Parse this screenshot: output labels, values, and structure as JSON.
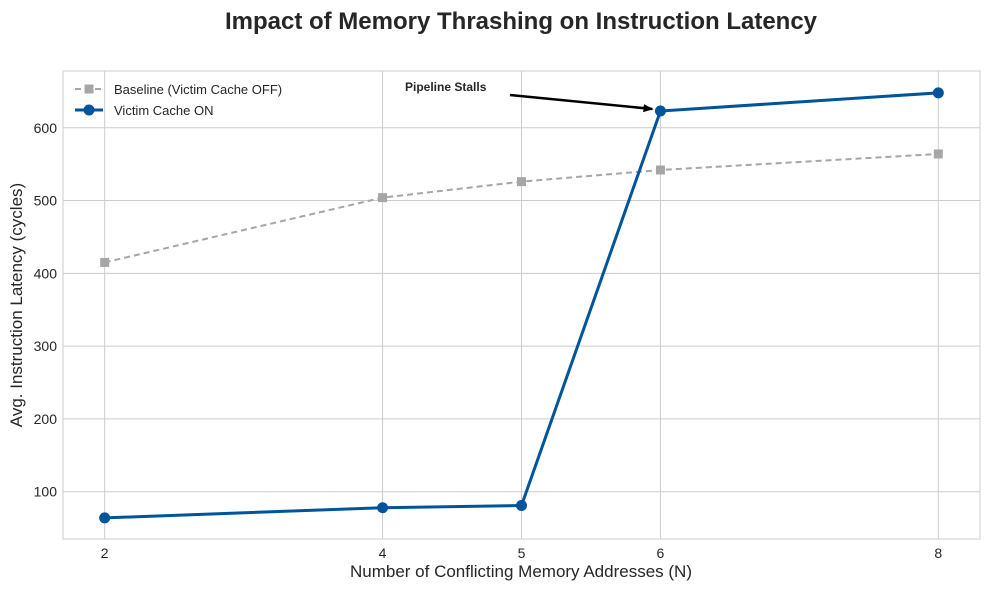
{
  "chart_data": {
    "type": "line",
    "title": "Impact of Memory Thrashing on Instruction Latency",
    "xlabel": "Number of Conflicting Memory Addresses (N)",
    "ylabel": "Avg. Instruction Latency (cycles)",
    "x": [
      2,
      4,
      5,
      6,
      8
    ],
    "xticks": [
      2,
      4,
      5,
      6,
      8
    ],
    "yticks": [
      100,
      200,
      300,
      400,
      500,
      600
    ],
    "xlim": [
      1.7,
      8.3
    ],
    "ylim": [
      35,
      678
    ],
    "grid": true,
    "legend_position": "top-left",
    "series": [
      {
        "name": "Baseline (Victim Cache OFF)",
        "values": [
          415,
          504,
          526,
          542,
          564
        ],
        "color": "#a6a6a6",
        "line_style": "dashed",
        "marker": "square"
      },
      {
        "name": "Victim Cache ON",
        "values": [
          64,
          78,
          81,
          623,
          648
        ],
        "color": "#00549a",
        "line_style": "solid",
        "marker": "circle"
      }
    ],
    "annotations": [
      {
        "text": "Pipeline Stalls",
        "points_to": {
          "x": 6,
          "y": 623
        }
      }
    ]
  }
}
